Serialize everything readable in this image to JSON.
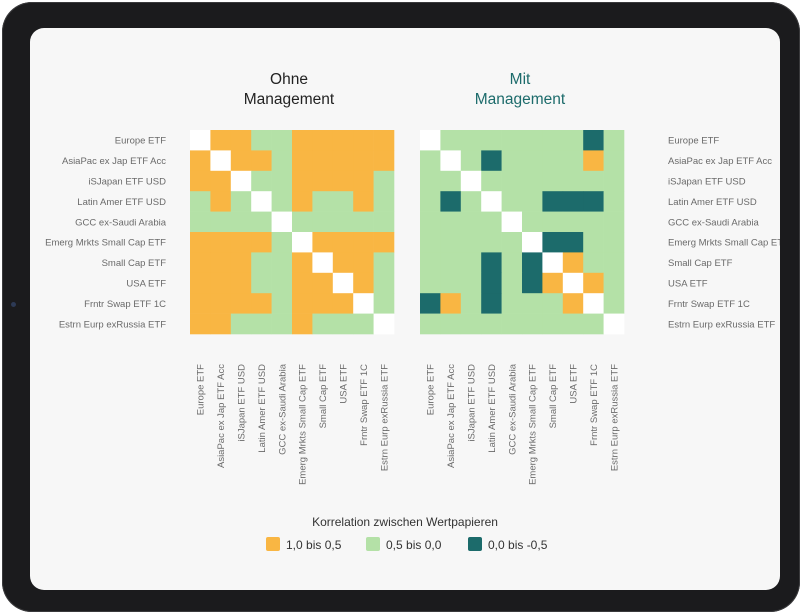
{
  "colors": {
    "high": "#F9B643",
    "mid": "#B4E1A7",
    "neg": "#1C6B6B",
    "diag": "#FFFFFF",
    "title_left": "#222222",
    "title_right": "#1C6B6B"
  },
  "chart_data": [
    {
      "type": "heatmap",
      "title": "Ohne Management",
      "title_lines": [
        "Ohne",
        "Management"
      ],
      "categories": [
        "Europe ETF",
        "AsiaPac ex Jap ETF Acc",
        "iSJapan ETF USD",
        "Latin Amer ETF USD",
        "GCC ex-Saudi Arabia",
        "Emerg Mrkts Small Cap ETF",
        "Small Cap ETF",
        "USA ETF",
        "Frntr Swap ETF 1C",
        "Estrn Eurp exRussia ETF"
      ],
      "cells": [
        [
          "d",
          "h",
          "h",
          "m",
          "m",
          "h",
          "h",
          "h",
          "h",
          "h"
        ],
        [
          "h",
          "d",
          "h",
          "h",
          "m",
          "h",
          "h",
          "h",
          "h",
          "h"
        ],
        [
          "h",
          "h",
          "d",
          "m",
          "m",
          "h",
          "h",
          "h",
          "h",
          "m"
        ],
        [
          "m",
          "h",
          "m",
          "d",
          "m",
          "h",
          "m",
          "m",
          "h",
          "m"
        ],
        [
          "m",
          "m",
          "m",
          "m",
          "d",
          "m",
          "m",
          "m",
          "m",
          "m"
        ],
        [
          "h",
          "h",
          "h",
          "h",
          "m",
          "d",
          "h",
          "h",
          "h",
          "h"
        ],
        [
          "h",
          "h",
          "h",
          "m",
          "m",
          "h",
          "d",
          "h",
          "h",
          "m"
        ],
        [
          "h",
          "h",
          "h",
          "m",
          "m",
          "h",
          "h",
          "d",
          "h",
          "m"
        ],
        [
          "h",
          "h",
          "h",
          "h",
          "m",
          "h",
          "h",
          "h",
          "d",
          "m"
        ],
        [
          "h",
          "h",
          "m",
          "m",
          "m",
          "h",
          "m",
          "m",
          "m",
          "d"
        ]
      ]
    },
    {
      "type": "heatmap",
      "title": "Mit Management",
      "title_lines": [
        "Mit",
        "Management"
      ],
      "categories": [
        "Europe ETF",
        "AsiaPac ex Jap ETF Acc",
        "iSJapan ETF USD",
        "Latin Amer ETF USD",
        "GCC ex-Saudi Arabia",
        "Emerg Mrkts Small Cap ETF",
        "Small Cap ETF",
        "USA ETF",
        "Frntr Swap ETF 1C",
        "Estrn Eurp exRussia ETF"
      ],
      "cells": [
        [
          "d",
          "m",
          "m",
          "m",
          "m",
          "m",
          "m",
          "m",
          "n",
          "m"
        ],
        [
          "m",
          "d",
          "m",
          "n",
          "m",
          "m",
          "m",
          "m",
          "h",
          "m"
        ],
        [
          "m",
          "m",
          "d",
          "m",
          "m",
          "m",
          "m",
          "m",
          "m",
          "m"
        ],
        [
          "m",
          "n",
          "m",
          "d",
          "m",
          "m",
          "n",
          "n",
          "n",
          "m"
        ],
        [
          "m",
          "m",
          "m",
          "m",
          "d",
          "m",
          "m",
          "m",
          "m",
          "m"
        ],
        [
          "m",
          "m",
          "m",
          "m",
          "m",
          "d",
          "n",
          "n",
          "m",
          "m"
        ],
        [
          "m",
          "m",
          "m",
          "n",
          "m",
          "n",
          "d",
          "h",
          "m",
          "m"
        ],
        [
          "m",
          "m",
          "m",
          "n",
          "m",
          "n",
          "h",
          "d",
          "h",
          "m"
        ],
        [
          "n",
          "h",
          "m",
          "n",
          "m",
          "m",
          "m",
          "h",
          "d",
          "m"
        ],
        [
          "m",
          "m",
          "m",
          "m",
          "m",
          "m",
          "m",
          "m",
          "m",
          "d"
        ]
      ]
    }
  ],
  "legend": {
    "title": "Korrelation zwischen Wertpapieren",
    "items": [
      {
        "key": "h",
        "label": "1,0 bis 0,5"
      },
      {
        "key": "m",
        "label": "0,5 bis 0,0"
      },
      {
        "key": "n",
        "label": "0,0 bis -0,5"
      }
    ]
  }
}
